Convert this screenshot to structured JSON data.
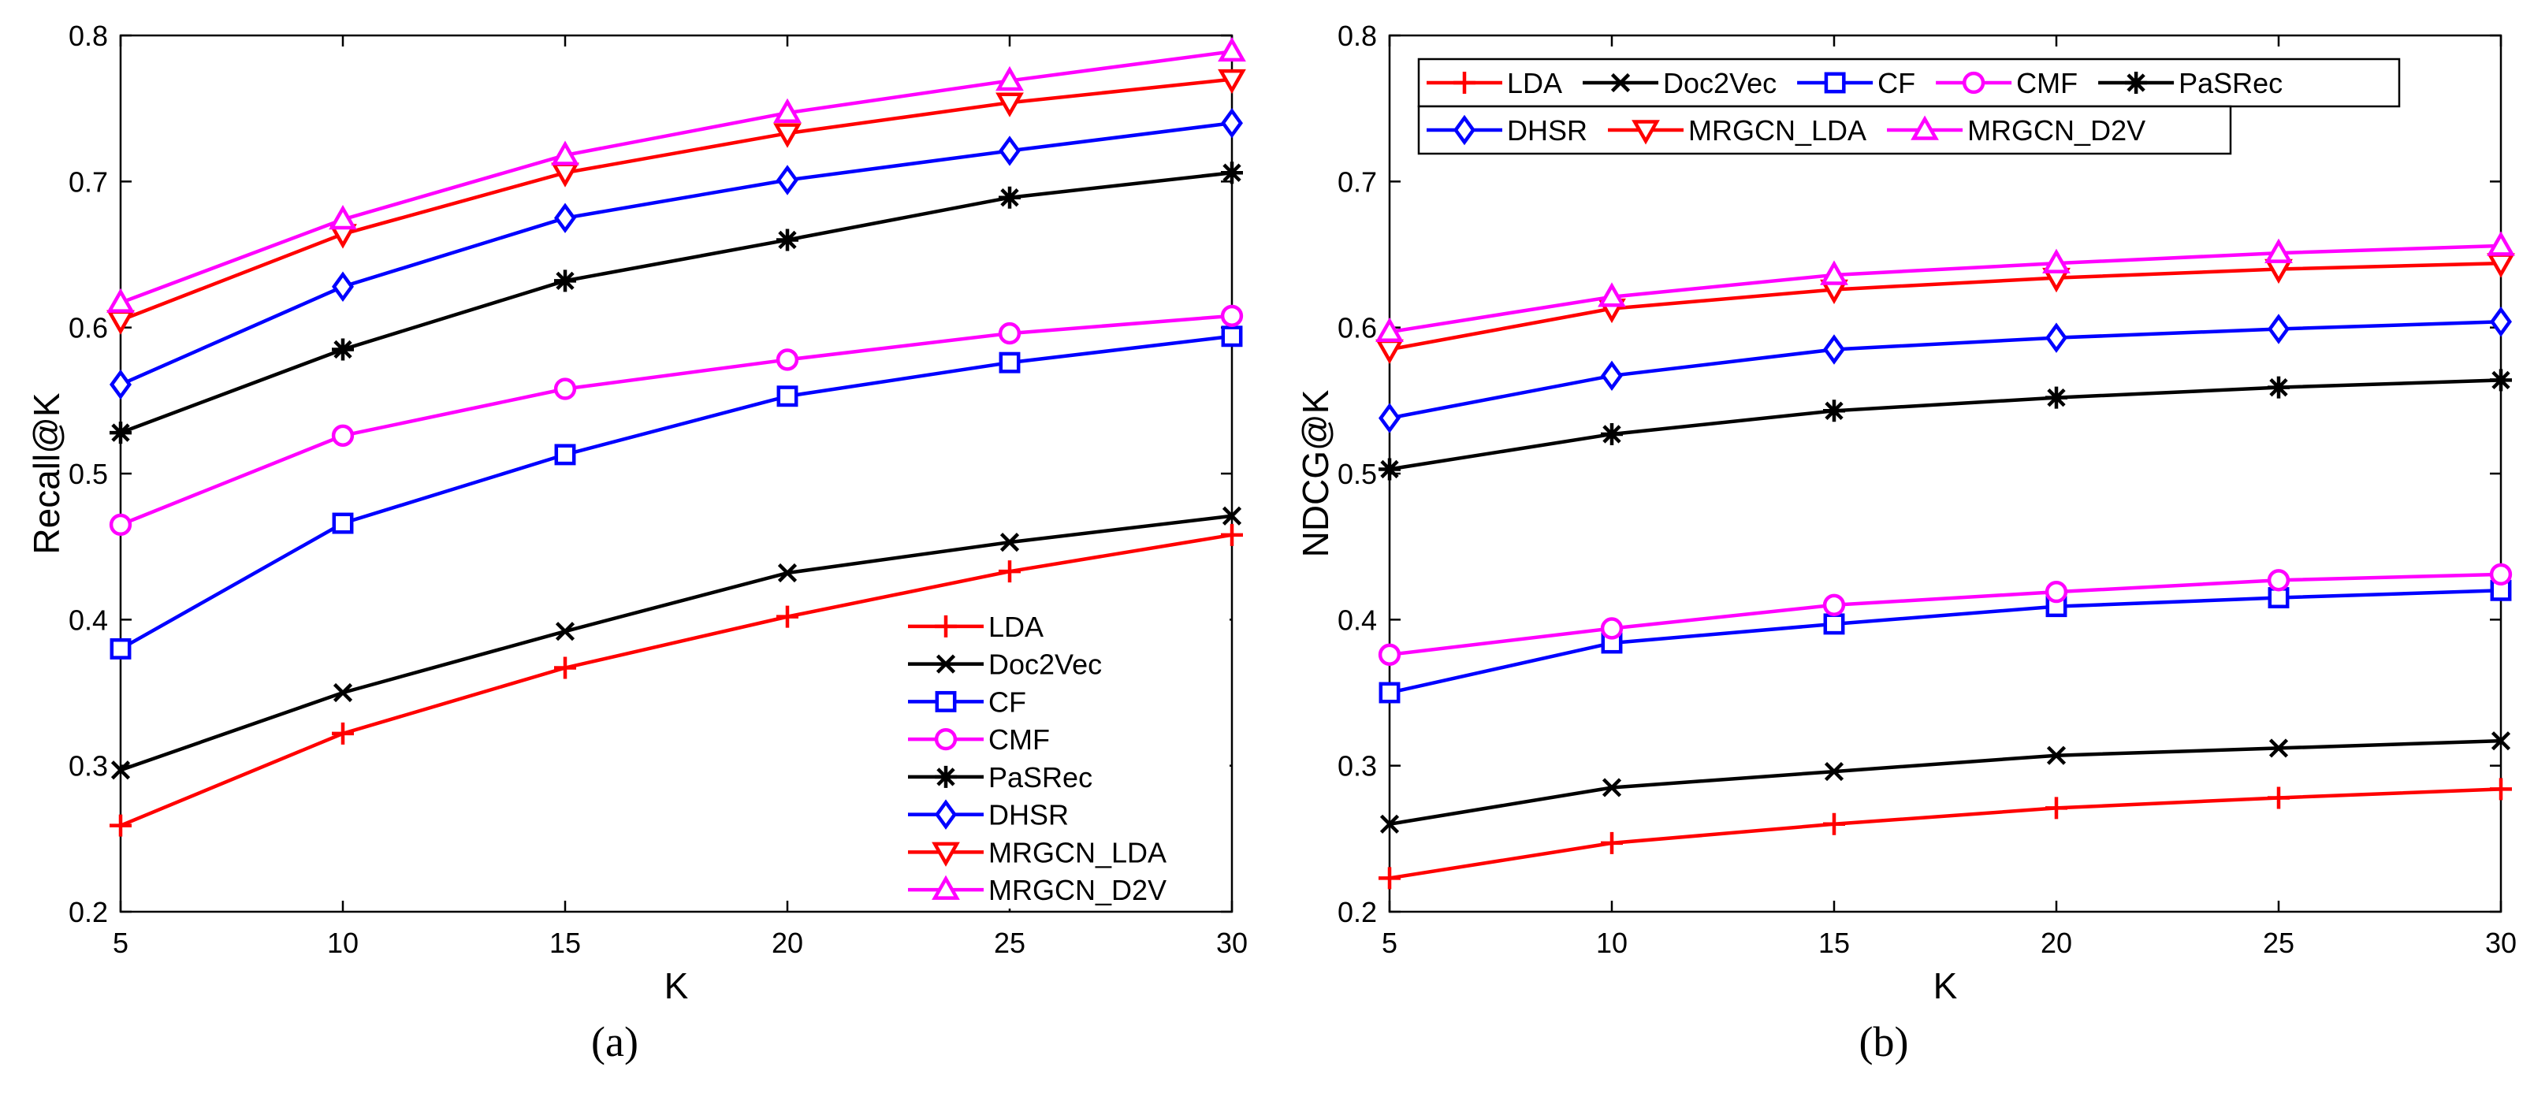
{
  "figure": {
    "background": "#ffffff",
    "axis_color": "#000000"
  },
  "chart_data": [
    {
      "panel_label": "(a)",
      "type": "line",
      "xlabel": "K",
      "ylabel": "Recall@K",
      "xlim": [
        5,
        30
      ],
      "ylim": [
        0.2,
        0.8
      ],
      "xticks": [
        5,
        10,
        15,
        20,
        25,
        30
      ],
      "yticks": [
        0.2,
        0.3,
        0.4,
        0.5,
        0.6,
        0.7,
        0.8
      ],
      "ytick_labels": [
        "0.2",
        "0.3",
        "0.4",
        "0.5",
        "0.6",
        "0.7",
        "0.8"
      ],
      "grid": false,
      "legend_position": "bottom-right",
      "legend_layout": "vertical",
      "x": [
        5,
        10,
        15,
        20,
        25,
        30
      ],
      "series": [
        {
          "name": "LDA",
          "color": "#ff0000",
          "marker": "plus",
          "values": [
            0.259,
            0.322,
            0.367,
            0.402,
            0.433,
            0.458
          ]
        },
        {
          "name": "Doc2Vec",
          "color": "#000000",
          "marker": "x",
          "values": [
            0.297,
            0.35,
            0.392,
            0.432,
            0.453,
            0.471
          ]
        },
        {
          "name": "CF",
          "color": "#0000ff",
          "marker": "square",
          "values": [
            0.38,
            0.466,
            0.513,
            0.553,
            0.576,
            0.594
          ]
        },
        {
          "name": "CMF",
          "color": "#ff00ff",
          "marker": "circle",
          "values": [
            0.465,
            0.526,
            0.558,
            0.578,
            0.596,
            0.608
          ]
        },
        {
          "name": "PaSRec",
          "color": "#000000",
          "marker": "star",
          "values": [
            0.528,
            0.585,
            0.632,
            0.66,
            0.689,
            0.706
          ]
        },
        {
          "name": "DHSR",
          "color": "#0000ff",
          "marker": "diamond",
          "values": [
            0.561,
            0.628,
            0.675,
            0.701,
            0.721,
            0.74
          ]
        },
        {
          "name": "MRGCN_LDA",
          "color": "#ff0000",
          "marker": "triangle-down",
          "values": [
            0.605,
            0.664,
            0.706,
            0.733,
            0.754,
            0.77
          ]
        },
        {
          "name": "MRGCN_D2V",
          "color": "#ff00ff",
          "marker": "triangle-up",
          "values": [
            0.617,
            0.674,
            0.718,
            0.747,
            0.769,
            0.789
          ]
        }
      ]
    },
    {
      "panel_label": "(b)",
      "type": "line",
      "xlabel": "K",
      "ylabel": "NDCG@K",
      "xlim": [
        5,
        30
      ],
      "ylim": [
        0.2,
        0.8
      ],
      "xticks": [
        5,
        10,
        15,
        20,
        25,
        30
      ],
      "yticks": [
        0.2,
        0.3,
        0.4,
        0.5,
        0.6,
        0.7,
        0.8
      ],
      "ytick_labels": [
        "0.2",
        "0.3",
        "0.4",
        "0.5",
        "0.6",
        "0.7",
        "0.8"
      ],
      "grid": false,
      "legend_position": "top-left",
      "legend_layout": "two-rows",
      "x": [
        5,
        10,
        15,
        20,
        25,
        30
      ],
      "series": [
        {
          "name": "LDA",
          "color": "#ff0000",
          "marker": "plus",
          "values": [
            0.223,
            0.247,
            0.26,
            0.271,
            0.278,
            0.284
          ]
        },
        {
          "name": "Doc2Vec",
          "color": "#000000",
          "marker": "x",
          "values": [
            0.26,
            0.285,
            0.296,
            0.307,
            0.312,
            0.317
          ]
        },
        {
          "name": "CF",
          "color": "#0000ff",
          "marker": "square",
          "values": [
            0.35,
            0.384,
            0.397,
            0.409,
            0.415,
            0.42
          ]
        },
        {
          "name": "CMF",
          "color": "#ff00ff",
          "marker": "circle",
          "values": [
            0.376,
            0.394,
            0.41,
            0.419,
            0.427,
            0.431
          ]
        },
        {
          "name": "PaSRec",
          "color": "#000000",
          "marker": "star",
          "values": [
            0.503,
            0.527,
            0.543,
            0.552,
            0.559,
            0.564
          ]
        },
        {
          "name": "DHSR",
          "color": "#0000ff",
          "marker": "diamond",
          "values": [
            0.538,
            0.567,
            0.585,
            0.593,
            0.599,
            0.604
          ]
        },
        {
          "name": "MRGCN_LDA",
          "color": "#ff0000",
          "marker": "triangle-down",
          "values": [
            0.585,
            0.613,
            0.626,
            0.634,
            0.64,
            0.644
          ]
        },
        {
          "name": "MRGCN_D2V",
          "color": "#ff00ff",
          "marker": "triangle-up",
          "values": [
            0.597,
            0.621,
            0.636,
            0.644,
            0.651,
            0.656
          ]
        }
      ]
    }
  ]
}
